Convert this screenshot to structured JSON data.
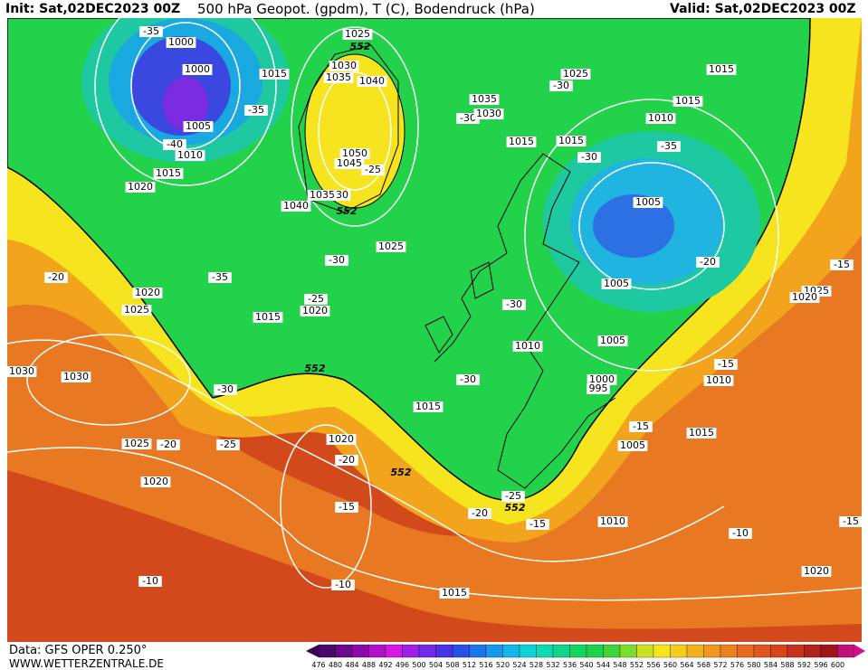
{
  "header": {
    "init": "Init: Sat,02DEC2023 00Z",
    "title": "500 hPa Geopot. (gpdm), T (C), Bodendruck (hPa)",
    "valid": "Valid: Sat,02DEC2023 00Z"
  },
  "footer": {
    "data": "Data: GFS OPER 0.250°",
    "site": "WWW.WETTERZENTRALE.DE"
  },
  "map": {
    "labels": [
      "-35",
      "1000",
      "1025",
      "552",
      "1015",
      "1000",
      "1030",
      "1035",
      "1040",
      "1025",
      "-30",
      "1015",
      "-35",
      "1035",
      "-30",
      "1030",
      "1015",
      "1010",
      "1005",
      "-40",
      "1010",
      "1050",
      "1045",
      "-25",
      "1015",
      "1015",
      "-35",
      "-30",
      "1015",
      "1020",
      "1035",
      "30",
      "1040",
      "552",
      "1005",
      "1025",
      "-30",
      "-20",
      "-15",
      "-20",
      "-35",
      "1005",
      "1020",
      "1025",
      "1020",
      "-25",
      "1020",
      "1025",
      "-30",
      "1015",
      "1005",
      "1010",
      "1030",
      "1030",
      "552",
      "-15",
      "-30",
      "1000",
      "995",
      "1010",
      "-30",
      "1015",
      "-15",
      "1015",
      "1020",
      "1025",
      "-20",
      "-25",
      "1005",
      "-20",
      "552",
      "1020",
      "-25",
      "552",
      "-15",
      "-20",
      "-15",
      "1010",
      "-15",
      "-10",
      "1020",
      "-10",
      "-10",
      "1015"
    ]
  },
  "colorbar": {
    "labels": [
      "476",
      "480",
      "484",
      "488",
      "492",
      "496",
      "500",
      "504",
      "508",
      "512",
      "516",
      "520",
      "524",
      "528",
      "532",
      "536",
      "540",
      "544",
      "548",
      "552",
      "556",
      "560",
      "564",
      "568",
      "572",
      "576",
      "580",
      "584",
      "588",
      "592",
      "596",
      "600"
    ]
  }
}
